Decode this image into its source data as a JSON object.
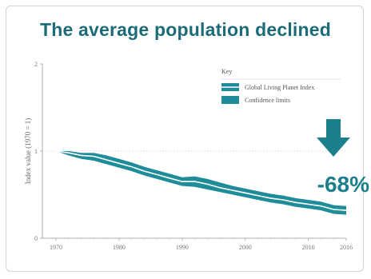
{
  "header": {
    "title": "The average population declined"
  },
  "colors": {
    "accent": "#1b7f8c",
    "band": "#1f8c99",
    "line": "#ffffff",
    "title": "#1b6b78"
  },
  "chart_data": {
    "type": "area",
    "title": "The average population declined",
    "ylabel": "Index value (1970 = 1)",
    "xlabel": "",
    "xlim": [
      1970,
      2016
    ],
    "ylim": [
      0,
      2
    ],
    "x_ticks": [
      "1970",
      "1980",
      "1990",
      "2000",
      "2010",
      "2016"
    ],
    "y_ticks": [
      "0",
      "1",
      "2"
    ],
    "x_tick_values": [
      1970,
      1980,
      1990,
      2000,
      2010,
      2016
    ],
    "y_tick_values": [
      0,
      1,
      2
    ],
    "legend": {
      "title": "Key",
      "placement": "top-right",
      "items": [
        "Global Living Planet Index",
        "Confidence limits"
      ]
    },
    "annotation": {
      "text": "-68%",
      "icon": "arrow-down-icon"
    },
    "series": [
      {
        "name": "Global Living Planet Index",
        "x": [
          1970,
          1972,
          1974,
          1976,
          1978,
          1980,
          1982,
          1984,
          1986,
          1988,
          1990,
          1992,
          1994,
          1996,
          1998,
          2000,
          2002,
          2004,
          2006,
          2008,
          2010,
          2012,
          2014,
          2016
        ],
        "values": [
          1.0,
          0.98,
          0.95,
          0.94,
          0.9,
          0.86,
          0.82,
          0.77,
          0.73,
          0.69,
          0.65,
          0.65,
          0.62,
          0.58,
          0.55,
          0.52,
          0.49,
          0.46,
          0.44,
          0.41,
          0.39,
          0.37,
          0.33,
          0.32
        ],
        "lower": [
          1.0,
          0.95,
          0.91,
          0.89,
          0.85,
          0.81,
          0.77,
          0.72,
          0.68,
          0.64,
          0.6,
          0.59,
          0.56,
          0.53,
          0.5,
          0.47,
          0.44,
          0.41,
          0.39,
          0.36,
          0.34,
          0.32,
          0.28,
          0.27
        ],
        "upper": [
          1.0,
          1.0,
          0.98,
          0.98,
          0.95,
          0.91,
          0.87,
          0.82,
          0.78,
          0.74,
          0.7,
          0.71,
          0.68,
          0.64,
          0.6,
          0.57,
          0.54,
          0.51,
          0.49,
          0.46,
          0.44,
          0.42,
          0.38,
          0.37
        ]
      }
    ]
  }
}
